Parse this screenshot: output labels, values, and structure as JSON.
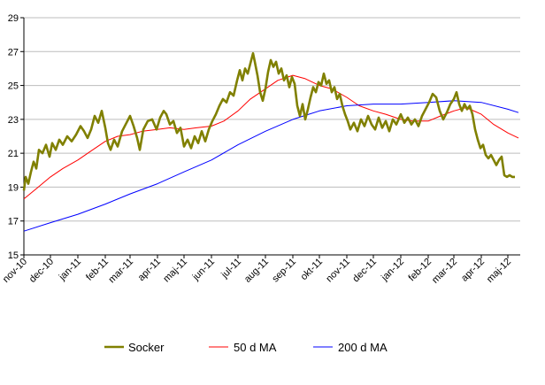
{
  "chart_data": {
    "type": "line",
    "title": "",
    "xlabel": "",
    "ylabel": "",
    "ylim": [
      15,
      29
    ],
    "yticks": [
      15,
      17,
      19,
      21,
      23,
      25,
      27,
      29
    ],
    "xlim": [
      "2010-11-01",
      "2012-05-15"
    ],
    "xticks": [
      {
        "date": "2010-11-01",
        "label": "nov-10"
      },
      {
        "date": "2010-12-01",
        "label": "dec-10"
      },
      {
        "date": "2011-01-01",
        "label": "jan-11"
      },
      {
        "date": "2011-02-01",
        "label": "feb-11"
      },
      {
        "date": "2011-03-01",
        "label": "mar-11"
      },
      {
        "date": "2011-04-01",
        "label": "apr-11"
      },
      {
        "date": "2011-05-01",
        "label": "maj-11"
      },
      {
        "date": "2011-06-01",
        "label": "jun-11"
      },
      {
        "date": "2011-07-01",
        "label": "jul-11"
      },
      {
        "date": "2011-08-01",
        "label": "aug-11"
      },
      {
        "date": "2011-09-01",
        "label": "sep-11"
      },
      {
        "date": "2011-10-01",
        "label": "okt-11"
      },
      {
        "date": "2011-11-01",
        "label": "nov-11"
      },
      {
        "date": "2011-12-01",
        "label": "dec-11"
      },
      {
        "date": "2012-01-01",
        "label": "jan-12"
      },
      {
        "date": "2012-02-01",
        "label": "feb-12"
      },
      {
        "date": "2012-03-01",
        "label": "mar-12"
      },
      {
        "date": "2012-04-01",
        "label": "apr-12"
      },
      {
        "date": "2012-05-01",
        "label": "maj-12"
      }
    ],
    "grid": {
      "horizontal": true,
      "vertical": false
    },
    "legend_position": "bottom",
    "series": [
      {
        "name": "Socker",
        "color": "#808000",
        "points": [
          [
            "2010-11-01",
            18.8
          ],
          [
            "2010-11-03",
            19.6
          ],
          [
            "2010-11-06",
            19.2
          ],
          [
            "2010-11-09",
            19.9
          ],
          [
            "2010-11-12",
            20.5
          ],
          [
            "2010-11-15",
            20.1
          ],
          [
            "2010-11-18",
            21.2
          ],
          [
            "2010-11-22",
            21.0
          ],
          [
            "2010-11-26",
            21.5
          ],
          [
            "2010-11-30",
            20.8
          ],
          [
            "2010-12-03",
            21.6
          ],
          [
            "2010-12-07",
            21.2
          ],
          [
            "2010-12-11",
            21.8
          ],
          [
            "2010-12-15",
            21.5
          ],
          [
            "2010-12-20",
            22.0
          ],
          [
            "2010-12-25",
            21.7
          ],
          [
            "2010-12-30",
            22.1
          ],
          [
            "2011-01-04",
            22.6
          ],
          [
            "2011-01-08",
            22.3
          ],
          [
            "2011-01-12",
            21.9
          ],
          [
            "2011-01-16",
            22.4
          ],
          [
            "2011-01-20",
            23.2
          ],
          [
            "2011-01-24",
            22.8
          ],
          [
            "2011-01-28",
            23.5
          ],
          [
            "2011-02-01",
            22.5
          ],
          [
            "2011-02-04",
            21.6
          ],
          [
            "2011-02-07",
            21.2
          ],
          [
            "2011-02-11",
            21.8
          ],
          [
            "2011-02-15",
            21.4
          ],
          [
            "2011-02-20",
            22.3
          ],
          [
            "2011-02-25",
            22.8
          ],
          [
            "2011-03-01",
            23.2
          ],
          [
            "2011-03-05",
            22.6
          ],
          [
            "2011-03-09",
            21.9
          ],
          [
            "2011-03-12",
            21.2
          ],
          [
            "2011-03-16",
            22.4
          ],
          [
            "2011-03-21",
            22.9
          ],
          [
            "2011-03-26",
            23.0
          ],
          [
            "2011-03-31",
            22.4
          ],
          [
            "2011-04-04",
            23.1
          ],
          [
            "2011-04-08",
            23.5
          ],
          [
            "2011-04-11",
            23.3
          ],
          [
            "2011-04-15",
            22.7
          ],
          [
            "2011-04-19",
            22.9
          ],
          [
            "2011-04-23",
            22.2
          ],
          [
            "2011-04-27",
            22.5
          ],
          [
            "2011-05-01",
            21.4
          ],
          [
            "2011-05-05",
            21.8
          ],
          [
            "2011-05-09",
            21.3
          ],
          [
            "2011-05-13",
            22.0
          ],
          [
            "2011-05-17",
            21.6
          ],
          [
            "2011-05-21",
            22.3
          ],
          [
            "2011-05-25",
            21.7
          ],
          [
            "2011-05-29",
            22.4
          ],
          [
            "2011-06-02",
            22.9
          ],
          [
            "2011-06-06",
            23.3
          ],
          [
            "2011-06-10",
            23.8
          ],
          [
            "2011-06-14",
            24.2
          ],
          [
            "2011-06-18",
            24.0
          ],
          [
            "2011-06-22",
            24.6
          ],
          [
            "2011-06-26",
            24.4
          ],
          [
            "2011-06-30",
            25.3
          ],
          [
            "2011-07-03",
            25.9
          ],
          [
            "2011-07-06",
            25.3
          ],
          [
            "2011-07-09",
            26.0
          ],
          [
            "2011-07-12",
            25.7
          ],
          [
            "2011-07-15",
            26.3
          ],
          [
            "2011-07-18",
            26.9
          ],
          [
            "2011-07-20",
            26.4
          ],
          [
            "2011-07-23",
            25.6
          ],
          [
            "2011-07-26",
            24.6
          ],
          [
            "2011-07-29",
            24.1
          ],
          [
            "2011-08-01",
            24.8
          ],
          [
            "2011-08-04",
            25.8
          ],
          [
            "2011-08-07",
            26.5
          ],
          [
            "2011-08-10",
            26.1
          ],
          [
            "2011-08-13",
            26.4
          ],
          [
            "2011-08-16",
            25.7
          ],
          [
            "2011-08-19",
            26.0
          ],
          [
            "2011-08-22",
            25.3
          ],
          [
            "2011-08-25",
            25.6
          ],
          [
            "2011-08-28",
            24.9
          ],
          [
            "2011-08-31",
            25.5
          ],
          [
            "2011-09-03",
            25.1
          ],
          [
            "2011-09-06",
            23.8
          ],
          [
            "2011-09-09",
            23.2
          ],
          [
            "2011-09-12",
            23.9
          ],
          [
            "2011-09-15",
            23.0
          ],
          [
            "2011-09-18",
            23.6
          ],
          [
            "2011-09-21",
            24.3
          ],
          [
            "2011-09-24",
            24.9
          ],
          [
            "2011-09-27",
            24.6
          ],
          [
            "2011-09-30",
            25.2
          ],
          [
            "2011-10-03",
            25.0
          ],
          [
            "2011-10-06",
            25.7
          ],
          [
            "2011-10-09",
            25.1
          ],
          [
            "2011-10-12",
            25.3
          ],
          [
            "2011-10-15",
            24.6
          ],
          [
            "2011-10-18",
            24.9
          ],
          [
            "2011-10-21",
            24.2
          ],
          [
            "2011-10-24",
            24.5
          ],
          [
            "2011-10-27",
            23.8
          ],
          [
            "2011-10-30",
            23.3
          ],
          [
            "2011-11-02",
            22.9
          ],
          [
            "2011-11-05",
            22.4
          ],
          [
            "2011-11-09",
            22.8
          ],
          [
            "2011-11-13",
            22.3
          ],
          [
            "2011-11-17",
            23.0
          ],
          [
            "2011-11-21",
            22.6
          ],
          [
            "2011-11-25",
            23.2
          ],
          [
            "2011-11-29",
            22.7
          ],
          [
            "2011-12-03",
            22.4
          ],
          [
            "2011-12-07",
            23.1
          ],
          [
            "2011-12-11",
            22.5
          ],
          [
            "2011-12-15",
            22.9
          ],
          [
            "2011-12-19",
            22.3
          ],
          [
            "2011-12-23",
            23.0
          ],
          [
            "2011-12-27",
            22.7
          ],
          [
            "2012-01-01",
            23.3
          ],
          [
            "2012-01-05",
            22.8
          ],
          [
            "2012-01-09",
            23.1
          ],
          [
            "2012-01-13",
            22.7
          ],
          [
            "2012-01-17",
            23.0
          ],
          [
            "2012-01-21",
            22.6
          ],
          [
            "2012-01-25",
            23.2
          ],
          [
            "2012-01-29",
            23.6
          ],
          [
            "2012-02-02",
            24.0
          ],
          [
            "2012-02-06",
            24.5
          ],
          [
            "2012-02-10",
            24.3
          ],
          [
            "2012-02-14",
            23.5
          ],
          [
            "2012-02-18",
            23.0
          ],
          [
            "2012-02-22",
            23.4
          ],
          [
            "2012-02-26",
            23.9
          ],
          [
            "2012-03-01",
            24.2
          ],
          [
            "2012-03-04",
            24.6
          ],
          [
            "2012-03-07",
            23.9
          ],
          [
            "2012-03-10",
            23.5
          ],
          [
            "2012-03-13",
            23.9
          ],
          [
            "2012-03-16",
            23.6
          ],
          [
            "2012-03-19",
            23.8
          ],
          [
            "2012-03-22",
            23.3
          ],
          [
            "2012-03-25",
            22.4
          ],
          [
            "2012-03-28",
            21.8
          ],
          [
            "2012-03-31",
            21.3
          ],
          [
            "2012-04-03",
            21.5
          ],
          [
            "2012-04-06",
            20.9
          ],
          [
            "2012-04-09",
            20.7
          ],
          [
            "2012-04-12",
            20.9
          ],
          [
            "2012-04-15",
            20.6
          ],
          [
            "2012-04-18",
            20.3
          ],
          [
            "2012-04-21",
            20.6
          ],
          [
            "2012-04-24",
            20.8
          ],
          [
            "2012-04-27",
            19.7
          ],
          [
            "2012-04-30",
            19.6
          ],
          [
            "2012-05-03",
            19.7
          ],
          [
            "2012-05-06",
            19.6
          ],
          [
            "2012-05-09",
            19.6
          ]
        ]
      },
      {
        "name": "50 d MA",
        "color": "#ff0000",
        "points": [
          [
            "2010-11-01",
            18.3
          ],
          [
            "2010-11-15",
            18.9
          ],
          [
            "2010-12-01",
            19.6
          ],
          [
            "2010-12-15",
            20.1
          ],
          [
            "2011-01-01",
            20.6
          ],
          [
            "2011-01-15",
            21.1
          ],
          [
            "2011-02-01",
            21.7
          ],
          [
            "2011-02-15",
            22.0
          ],
          [
            "2011-03-01",
            22.1
          ],
          [
            "2011-03-15",
            22.3
          ],
          [
            "2011-04-01",
            22.4
          ],
          [
            "2011-04-15",
            22.5
          ],
          [
            "2011-05-01",
            22.4
          ],
          [
            "2011-05-15",
            22.5
          ],
          [
            "2011-06-01",
            22.6
          ],
          [
            "2011-06-15",
            22.9
          ],
          [
            "2011-07-01",
            23.5
          ],
          [
            "2011-07-15",
            24.2
          ],
          [
            "2011-08-01",
            24.8
          ],
          [
            "2011-08-15",
            25.3
          ],
          [
            "2011-09-01",
            25.6
          ],
          [
            "2011-09-15",
            25.4
          ],
          [
            "2011-10-01",
            25.0
          ],
          [
            "2011-10-15",
            24.8
          ],
          [
            "2011-11-01",
            24.3
          ],
          [
            "2011-11-15",
            23.8
          ],
          [
            "2011-12-01",
            23.5
          ],
          [
            "2011-12-15",
            23.3
          ],
          [
            "2012-01-01",
            23.0
          ],
          [
            "2012-01-15",
            22.9
          ],
          [
            "2012-02-01",
            22.9
          ],
          [
            "2012-02-15",
            23.2
          ],
          [
            "2012-03-01",
            23.5
          ],
          [
            "2012-03-15",
            23.7
          ],
          [
            "2012-04-01",
            23.3
          ],
          [
            "2012-04-15",
            22.7
          ],
          [
            "2012-05-01",
            22.2
          ],
          [
            "2012-05-13",
            21.9
          ]
        ]
      },
      {
        "name": "200 d MA",
        "color": "#0000ff",
        "points": [
          [
            "2010-11-01",
            16.4
          ],
          [
            "2010-12-01",
            16.9
          ],
          [
            "2011-01-01",
            17.4
          ],
          [
            "2011-02-01",
            18.0
          ],
          [
            "2011-03-01",
            18.6
          ],
          [
            "2011-04-01",
            19.2
          ],
          [
            "2011-05-01",
            19.9
          ],
          [
            "2011-06-01",
            20.6
          ],
          [
            "2011-07-01",
            21.5
          ],
          [
            "2011-08-01",
            22.3
          ],
          [
            "2011-09-01",
            23.0
          ],
          [
            "2011-10-01",
            23.5
          ],
          [
            "2011-11-01",
            23.8
          ],
          [
            "2011-12-01",
            23.9
          ],
          [
            "2012-01-01",
            23.9
          ],
          [
            "2012-02-01",
            24.0
          ],
          [
            "2012-03-01",
            24.1
          ],
          [
            "2012-04-01",
            24.0
          ],
          [
            "2012-05-01",
            23.6
          ],
          [
            "2012-05-13",
            23.4
          ]
        ]
      }
    ]
  }
}
